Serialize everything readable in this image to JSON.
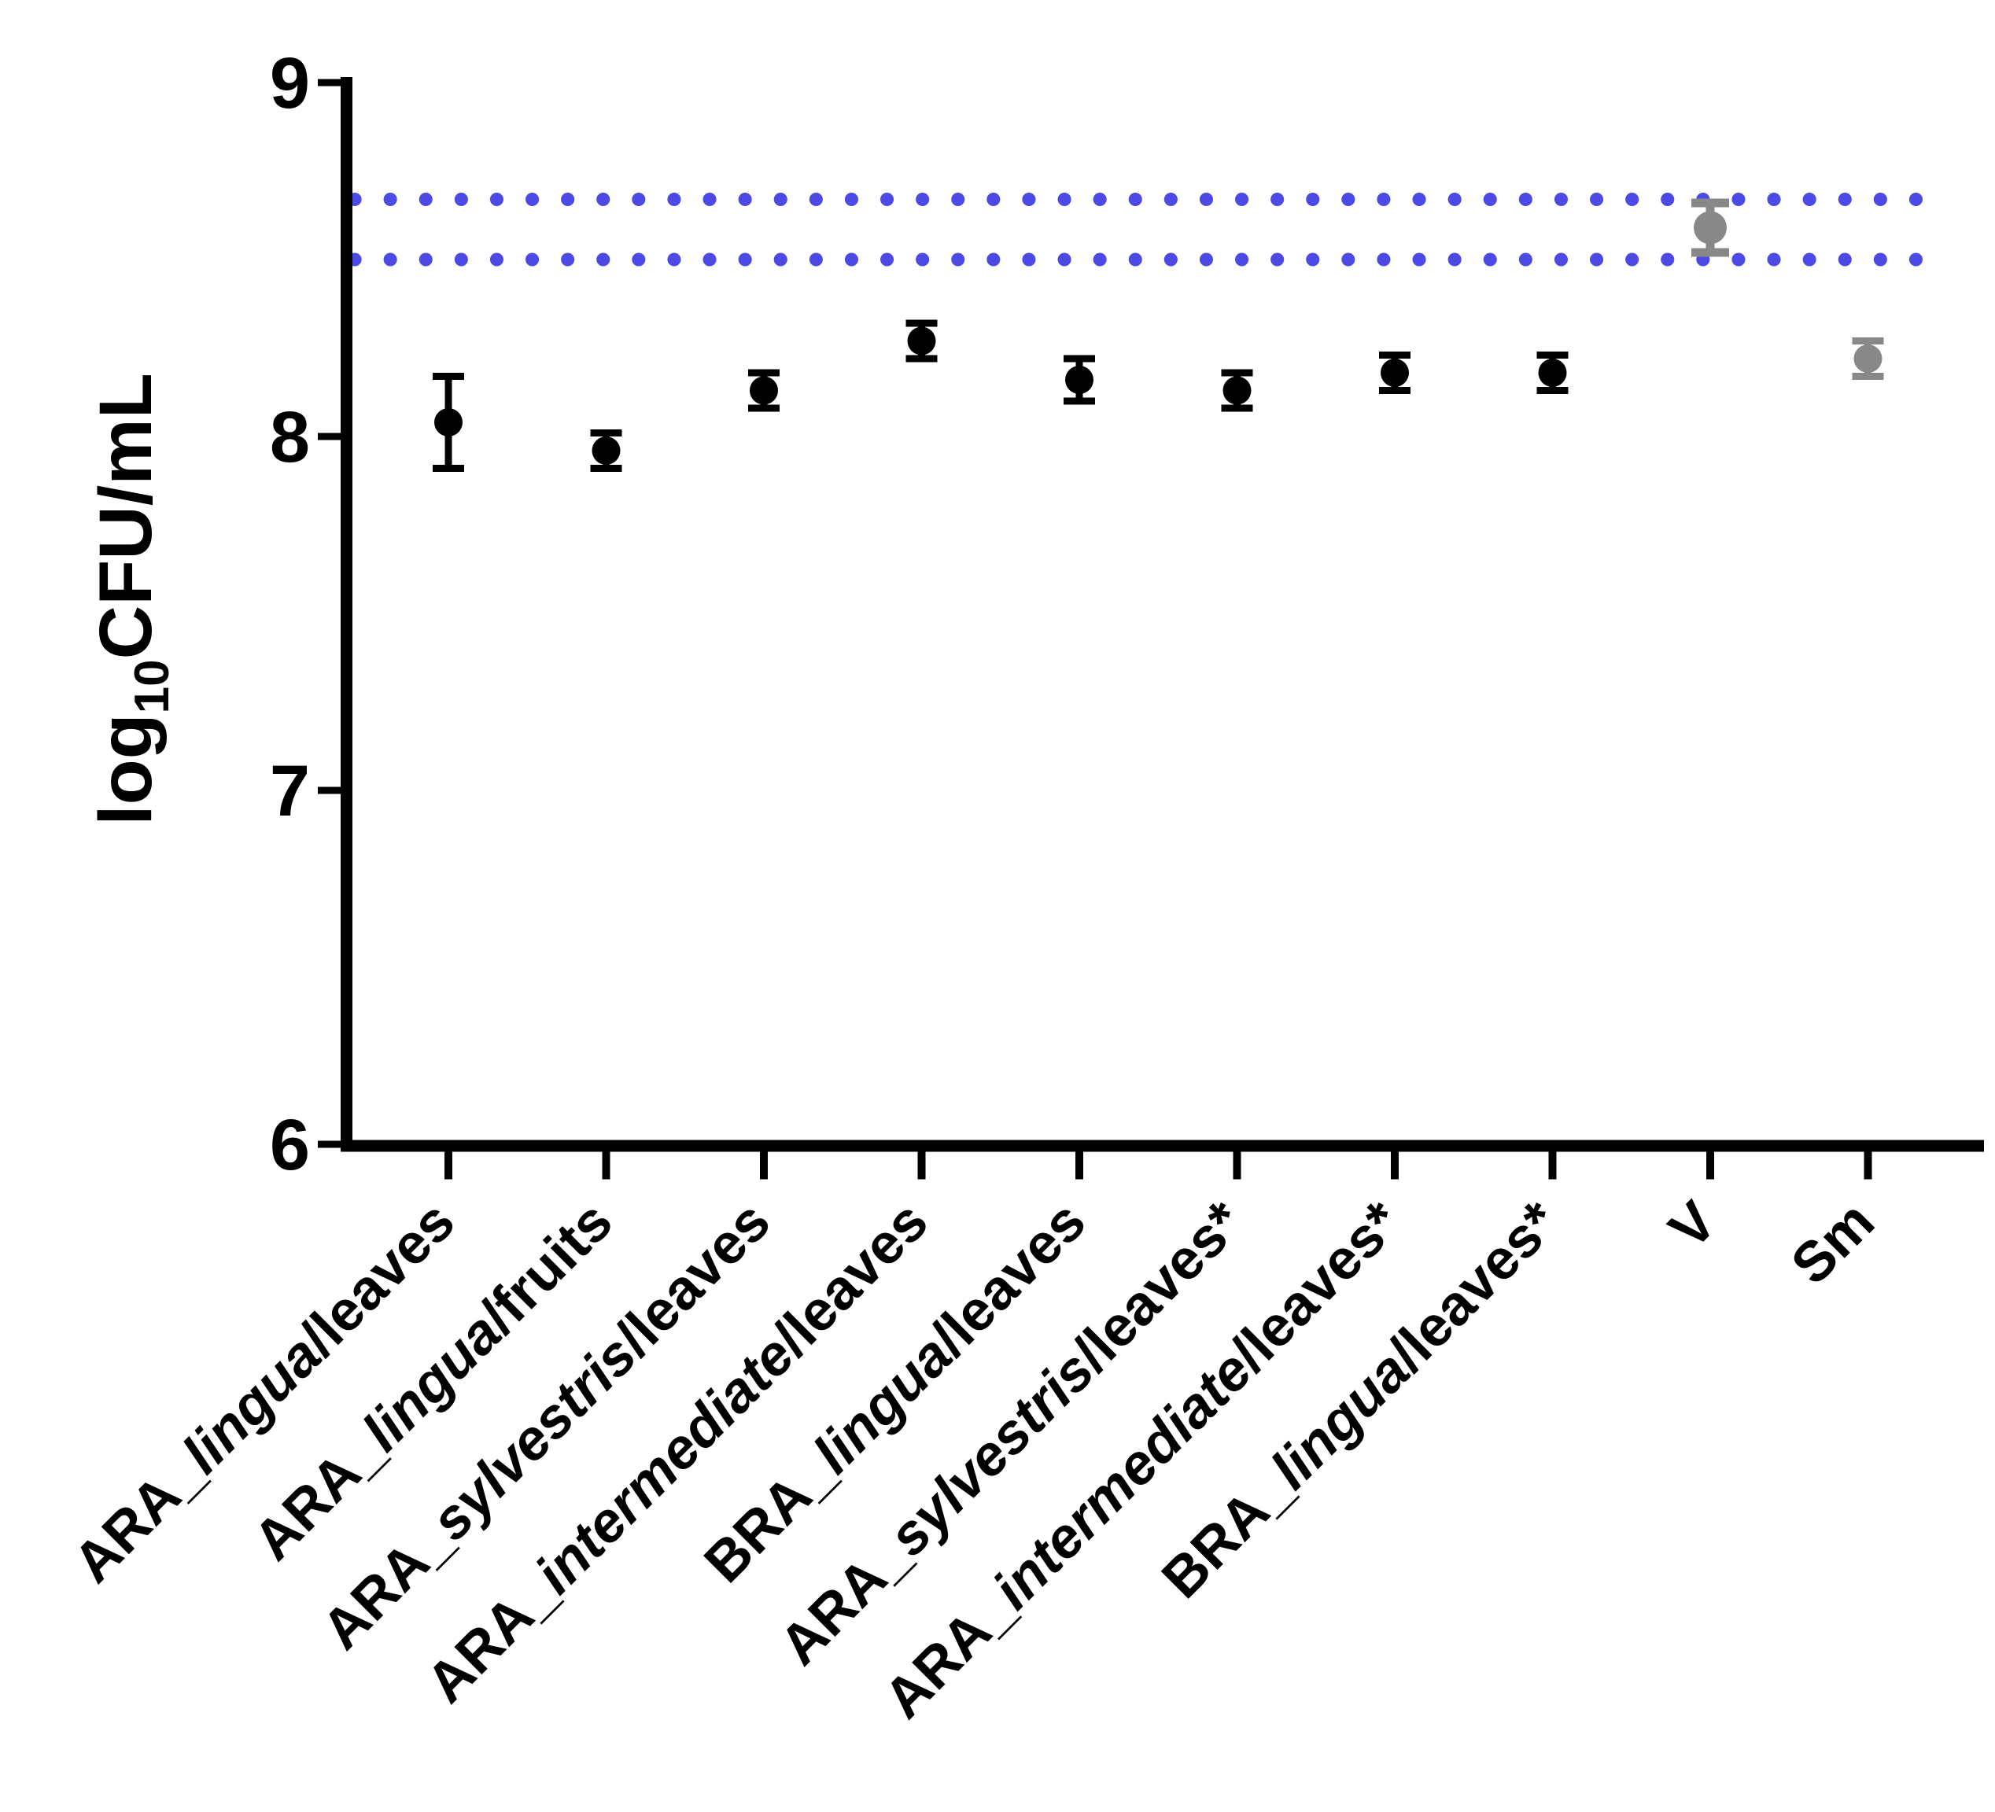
{
  "figure": {
    "background": "#ffffff",
    "axis_color": "#000000",
    "marker_colors": {
      "black": "#000000",
      "gray": "#888888"
    },
    "reference_line_color": "#4C49E4"
  },
  "chart_data": {
    "type": "scatter",
    "title": "",
    "ylabel": "log10CFU/mL",
    "ylabel_parts": {
      "prefix": "log",
      "sub": "10",
      "suffix": "CFU/mL"
    },
    "ylim": [
      6,
      9
    ],
    "yticks": [
      9,
      8,
      7,
      6
    ],
    "grid": false,
    "legend": null,
    "reference_lines": [
      {
        "value": 8.67,
        "style": "dotted",
        "color_key": "blue"
      },
      {
        "value": 8.5,
        "style": "dotted",
        "color_key": "blue"
      }
    ],
    "categories": [
      "ARA_lingua/leaves",
      "ARA_lingua/fruits",
      "ARA_sylvestris/leaves",
      "ARA_intermediate/leaves",
      "BRA_lingua/leaves",
      "ARA_sylvestris/leaves*",
      "ARA_intermediate/leaves*",
      "BRA_lingua/leaves*",
      "V",
      "Sm"
    ],
    "category_parts": [
      [
        {
          "text": "ARA_",
          "italic": false
        },
        {
          "text": "lingua",
          "italic": true
        },
        {
          "text": "/leaves",
          "italic": false
        }
      ],
      [
        {
          "text": "ARA_",
          "italic": false
        },
        {
          "text": "lingua",
          "italic": true
        },
        {
          "text": "/fruits",
          "italic": false
        }
      ],
      [
        {
          "text": "ARA_",
          "italic": false
        },
        {
          "text": "sylvestris",
          "italic": true
        },
        {
          "text": "/leaves",
          "italic": false
        }
      ],
      [
        {
          "text": "ARA_",
          "italic": false
        },
        {
          "text": "intermediate",
          "italic": true
        },
        {
          "text": "/leaves",
          "italic": false
        }
      ],
      [
        {
          "text": "BRA_",
          "italic": false
        },
        {
          "text": "lingua",
          "italic": true
        },
        {
          "text": "/leaves",
          "italic": false
        }
      ],
      [
        {
          "text": "ARA_",
          "italic": false
        },
        {
          "text": "sylvestris",
          "italic": true
        },
        {
          "text": "/leaves*",
          "italic": false
        }
      ],
      [
        {
          "text": "ARA_",
          "italic": false
        },
        {
          "text": "intermediate",
          "italic": true
        },
        {
          "text": "/leaves*",
          "italic": false
        }
      ],
      [
        {
          "text": "BRA_",
          "italic": false
        },
        {
          "text": "lingua",
          "italic": true
        },
        {
          "text": "/leaves*",
          "italic": false
        }
      ],
      [
        {
          "text": "V",
          "italic": false
        }
      ],
      [
        {
          "text": "Sm",
          "italic": false
        }
      ]
    ],
    "series": [
      {
        "name": "log10 CFU/mL",
        "values": [
          8.04,
          7.96,
          8.13,
          8.27,
          8.16,
          8.13,
          8.18,
          8.18,
          8.59,
          8.22
        ],
        "errors": [
          0.13,
          0.05,
          0.05,
          0.05,
          0.06,
          0.05,
          0.05,
          0.05,
          0.07,
          0.05
        ],
        "point_colors": [
          "black",
          "black",
          "black",
          "black",
          "black",
          "black",
          "black",
          "black",
          "gray",
          "gray"
        ]
      }
    ]
  }
}
